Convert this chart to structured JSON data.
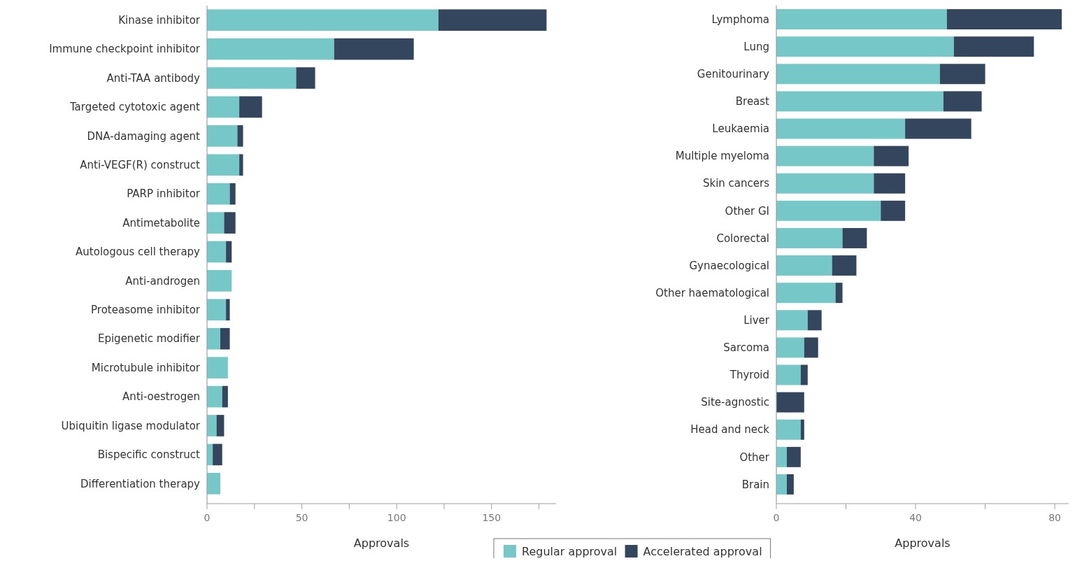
{
  "chart_data": [
    {
      "type": "bar",
      "orientation": "horizontal",
      "stacked": true,
      "xlabel": "Approvals",
      "legend": "bottom right",
      "categories": [
        "Kinase inhibitor",
        "Immune checkpoint inhibitor",
        "Anti-TAA antibody",
        "Targeted cytotoxic agent",
        "DNA-damaging agent",
        "Anti-VEGF(R) construct",
        "PARP inhibitor",
        "Antimetabolite",
        "Autologous cell therapy",
        "Anti-androgen",
        "Proteasome inhibitor",
        "Epigenetic modifier",
        "Microtubule inhibitor",
        "Anti-oestrogen",
        "Ubiquitin ligase modulator",
        "Bispecific construct",
        "Differentiation therapy"
      ],
      "series": [
        {
          "name": "Regular approval",
          "color": "#76c8c8",
          "values": [
            122,
            67,
            47,
            17,
            16,
            17,
            12,
            9,
            10,
            13,
            10,
            7,
            11,
            8,
            5,
            3,
            7
          ]
        },
        {
          "name": "Accelerated approval",
          "color": "#34455e",
          "values": [
            57,
            42,
            10,
            12,
            3,
            2,
            3,
            6,
            3,
            0,
            2,
            5,
            0,
            3,
            4,
            5,
            0
          ]
        }
      ],
      "xlim": [
        0,
        184
      ],
      "xticks": [
        0,
        {
          "value": 25,
          "label": null
        },
        50,
        {
          "value": 75,
          "label": null
        },
        100,
        {
          "value": 125,
          "label": null
        },
        150,
        {
          "value": 175,
          "label": null
        }
      ]
    },
    {
      "type": "bar",
      "orientation": "horizontal",
      "stacked": true,
      "xlabel": "Approvals",
      "categories": [
        "Lymphoma",
        "Lung",
        "Genitourinary",
        "Breast",
        "Leukaemia",
        "Multiple myeloma",
        "Skin cancers",
        "Other GI",
        "Colorectal",
        "Gynaecological",
        "Other haematological",
        "Liver",
        "Sarcoma",
        "Thyroid",
        "Site-agnostic",
        "Head and neck",
        "Other",
        "Brain"
      ],
      "series": [
        {
          "name": "Regular approval",
          "color": "#76c8c8",
          "values": [
            49,
            51,
            47,
            48,
            37,
            28,
            28,
            30,
            19,
            16,
            17,
            9,
            8,
            7,
            0,
            7,
            3,
            3
          ]
        },
        {
          "name": "Accelerated approval",
          "color": "#34455e",
          "values": [
            33,
            23,
            13,
            11,
            19,
            10,
            9,
            7,
            7,
            7,
            2,
            4,
            4,
            2,
            8,
            1,
            4,
            2
          ]
        }
      ],
      "xlim": [
        0,
        84
      ],
      "xticks": [
        0,
        {
          "value": 20,
          "label": null
        },
        40,
        {
          "value": 60,
          "label": null
        },
        80
      ]
    }
  ]
}
